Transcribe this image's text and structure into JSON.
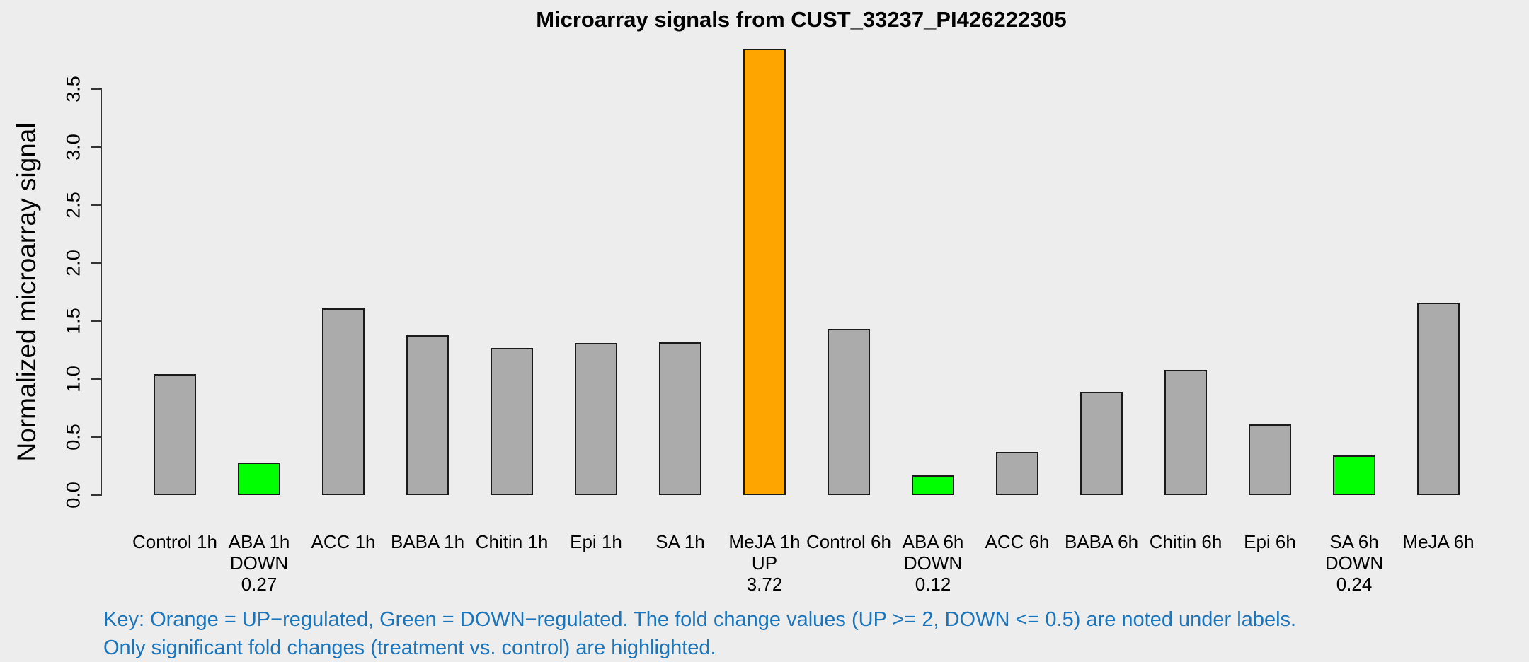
{
  "chart_data": {
    "type": "bar",
    "title": "Microarray signals from CUST_33237_PI426222305",
    "xlabel": "",
    "ylabel": "Normalized microarray signal",
    "ylim": [
      0,
      3.87
    ],
    "yticks": [
      "0.0",
      "0.5",
      "1.0",
      "1.5",
      "2.0",
      "2.5",
      "3.0",
      "3.5"
    ],
    "grid": false,
    "legend_position": "none",
    "colors": {
      "gray": "#ABABAB",
      "orange": "#FFA500",
      "green": "#00FF00",
      "border": "#1A1A1A",
      "background": "#EDEDED"
    },
    "bars": [
      {
        "label": "Control 1h",
        "value": 1.04,
        "color": "gray",
        "regulation": "",
        "fold_change": ""
      },
      {
        "label": "ABA 1h",
        "value": 0.28,
        "color": "green",
        "regulation": "DOWN",
        "fold_change": "0.27"
      },
      {
        "label": "ACC 1h",
        "value": 1.61,
        "color": "gray",
        "regulation": "",
        "fold_change": ""
      },
      {
        "label": "BABA 1h",
        "value": 1.38,
        "color": "gray",
        "regulation": "",
        "fold_change": ""
      },
      {
        "label": "Chitin 1h",
        "value": 1.27,
        "color": "gray",
        "regulation": "",
        "fold_change": ""
      },
      {
        "label": "Epi 1h",
        "value": 1.31,
        "color": "gray",
        "regulation": "",
        "fold_change": ""
      },
      {
        "label": "SA 1h",
        "value": 1.32,
        "color": "gray",
        "regulation": "",
        "fold_change": ""
      },
      {
        "label": "MeJA 1h",
        "value": 3.85,
        "color": "orange",
        "regulation": "UP",
        "fold_change": "3.72"
      },
      {
        "label": "Control 6h",
        "value": 1.43,
        "color": "gray",
        "regulation": "",
        "fold_change": ""
      },
      {
        "label": "ABA 6h",
        "value": 0.17,
        "color": "green",
        "regulation": "DOWN",
        "fold_change": "0.12"
      },
      {
        "label": "ACC 6h",
        "value": 0.37,
        "color": "gray",
        "regulation": "",
        "fold_change": ""
      },
      {
        "label": "BABA 6h",
        "value": 0.89,
        "color": "gray",
        "regulation": "",
        "fold_change": ""
      },
      {
        "label": "Chitin 6h",
        "value": 1.08,
        "color": "gray",
        "regulation": "",
        "fold_change": ""
      },
      {
        "label": "Epi 6h",
        "value": 0.61,
        "color": "gray",
        "regulation": "",
        "fold_change": ""
      },
      {
        "label": "SA 6h",
        "value": 0.34,
        "color": "green",
        "regulation": "DOWN",
        "fold_change": "0.24"
      },
      {
        "label": "MeJA 6h",
        "value": 1.66,
        "color": "gray",
        "regulation": "",
        "fold_change": ""
      }
    ]
  },
  "annotations": {
    "key_color": "#1B75BC",
    "key_line1": "Key: Orange = UP−regulated, Green = DOWN−regulated. The fold change values (UP >= 2, DOWN <= 0.5) are noted under labels.",
    "key_line2": "Only significant fold changes (treatment vs. control) are highlighted."
  }
}
